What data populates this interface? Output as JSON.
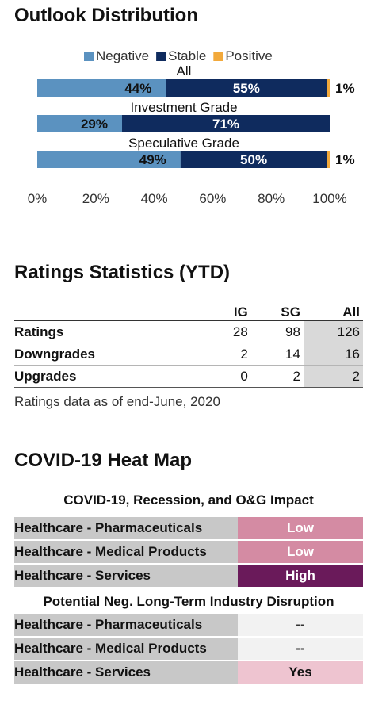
{
  "sections": {
    "outlook_title": "Outlook Distribution",
    "ratings_title": "Ratings Statistics (YTD)",
    "heatmap_title": "COVID-19 Heat Map"
  },
  "chart_data": {
    "type": "bar",
    "orientation": "horizontal",
    "stacked": true,
    "categories": [
      "All",
      "Investment Grade",
      "Speculative Grade"
    ],
    "series": [
      {
        "name": "Negative",
        "color": "#5b92c0",
        "values": [
          44,
          29,
          49
        ],
        "labels": [
          "44%",
          "29%",
          "49%"
        ]
      },
      {
        "name": "Stable",
        "color": "#0f2b5e",
        "values": [
          55,
          71,
          50
        ],
        "labels": [
          "55%",
          "71%",
          "50%"
        ]
      },
      {
        "name": "Positive",
        "color": "#f2a93b",
        "values": [
          1,
          0,
          1
        ],
        "labels": [
          "1%",
          "",
          "1%"
        ]
      }
    ],
    "xlim": [
      0,
      100
    ],
    "x_ticks": [
      "0%",
      "20%",
      "40%",
      "60%",
      "80%",
      "100%"
    ],
    "legend_position": "top",
    "grid": false
  },
  "ratings": {
    "columns": [
      "",
      "IG",
      "SG",
      "All"
    ],
    "rows": [
      {
        "label": "Ratings",
        "ig": "28",
        "sg": "98",
        "all": "126"
      },
      {
        "label": "Downgrades",
        "ig": "2",
        "sg": "14",
        "all": "16"
      },
      {
        "label": "Upgrades",
        "ig": "0",
        "sg": "2",
        "all": "2"
      }
    ],
    "note": "Ratings data as of end-June, 2020"
  },
  "heatmap": {
    "impact_title": "COVID-19, Recession, and O&G Impact",
    "impact_rows": [
      {
        "label": "Healthcare - Pharmaceuticals",
        "value": "Low",
        "bg": "#d48ba3",
        "fg": "#ffffff"
      },
      {
        "label": "Healthcare - Medical Products",
        "value": "Low",
        "bg": "#d48ba3",
        "fg": "#ffffff"
      },
      {
        "label": "Healthcare - Services",
        "value": "High",
        "bg": "#6a1a5a",
        "fg": "#ffffff"
      }
    ],
    "disruption_title": "Potential Neg. Long-Term Industry Disruption",
    "disruption_rows": [
      {
        "label": "Healthcare - Pharmaceuticals",
        "value": "--",
        "bg": "#f2f2f2",
        "fg": "#333333"
      },
      {
        "label": "Healthcare - Medical Products",
        "value": "--",
        "bg": "#f2f2f2",
        "fg": "#333333"
      },
      {
        "label": "Healthcare - Services",
        "value": "Yes",
        "bg": "#eec4d0",
        "fg": "#111111"
      }
    ]
  }
}
